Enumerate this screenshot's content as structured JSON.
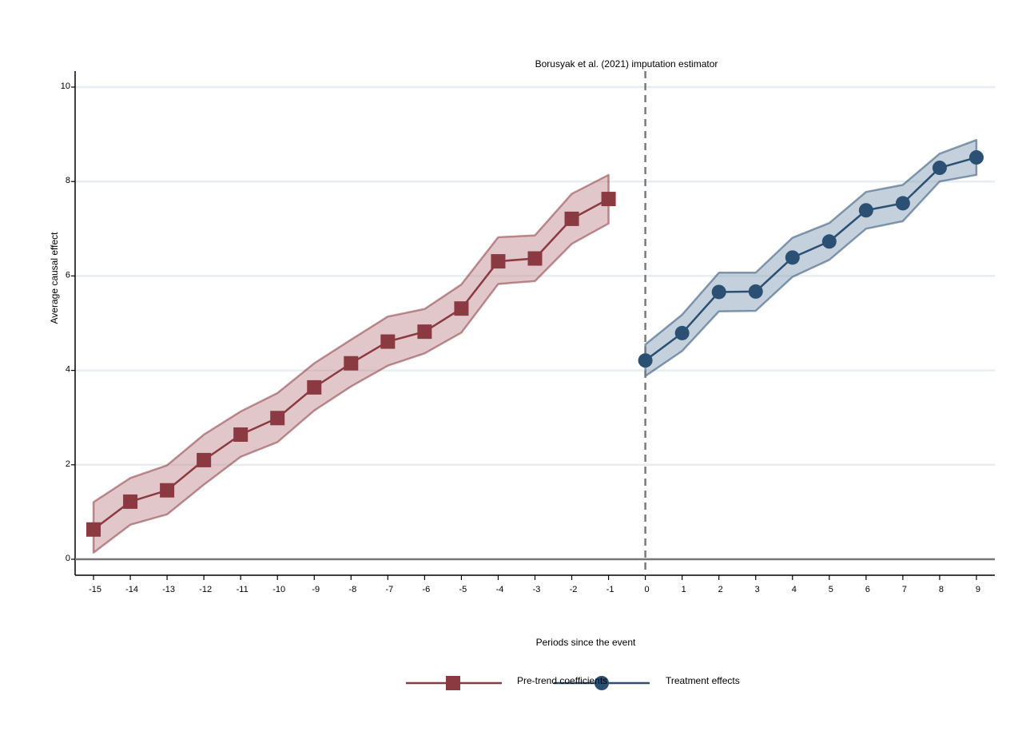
{
  "chart_data": {
    "type": "line",
    "title": "Borusyak et al. (2021) imputation estimator",
    "xlabel": "Periods since the event",
    "ylabel": "Average causal effect",
    "xlim": [
      -15.5,
      9.5
    ],
    "ylim": [
      0,
      10
    ],
    "y_ticks": [
      0,
      2,
      4,
      6,
      8,
      10
    ],
    "x_ticks": [
      -15,
      -14,
      -13,
      -12,
      -11,
      -10,
      -9,
      -8,
      -7,
      -6,
      -5,
      -4,
      -3,
      -2,
      -1,
      0,
      1,
      2,
      3,
      4,
      5,
      6,
      7,
      8,
      9
    ],
    "grid": true,
    "event_line_x": 0,
    "legend_position": "bottom",
    "series": [
      {
        "name": "Pre-trend coefficients",
        "marker": "square",
        "color": "#8b3a41",
        "fill": "#c48f94",
        "x": [
          -15,
          -14,
          -13,
          -12,
          -11,
          -10,
          -9,
          -8,
          -7,
          -6,
          -5,
          -4,
          -3,
          -2,
          -1
        ],
        "values": [
          0.63,
          1.22,
          1.46,
          2.1,
          2.64,
          2.99,
          3.64,
          4.15,
          4.61,
          4.82,
          5.31,
          6.31,
          6.37,
          7.21,
          7.63
        ],
        "ci_lower": [
          0.14,
          0.73,
          0.95,
          1.58,
          2.17,
          2.48,
          3.15,
          3.66,
          4.1,
          4.36,
          4.8,
          5.83,
          5.89,
          6.68,
          7.11
        ],
        "ci_upper": [
          1.21,
          1.72,
          1.99,
          2.64,
          3.13,
          3.52,
          4.15,
          4.65,
          5.14,
          5.3,
          5.82,
          6.82,
          6.86,
          7.74,
          8.14
        ]
      },
      {
        "name": "Treatment effects",
        "marker": "circle",
        "color": "#2b5073",
        "fill": "#8aa2b9",
        "x": [
          0,
          1,
          2,
          3,
          4,
          5,
          6,
          7,
          8,
          9
        ],
        "values": [
          4.21,
          4.79,
          5.66,
          5.67,
          6.39,
          6.73,
          7.39,
          7.54,
          8.29,
          8.51
        ],
        "ci_lower": [
          3.88,
          4.41,
          5.25,
          5.26,
          5.98,
          6.34,
          7.0,
          7.16,
          8.0,
          8.14
        ],
        "ci_upper": [
          4.55,
          5.18,
          6.07,
          6.07,
          6.81,
          7.12,
          7.78,
          7.93,
          8.59,
          8.88
        ]
      }
    ]
  }
}
